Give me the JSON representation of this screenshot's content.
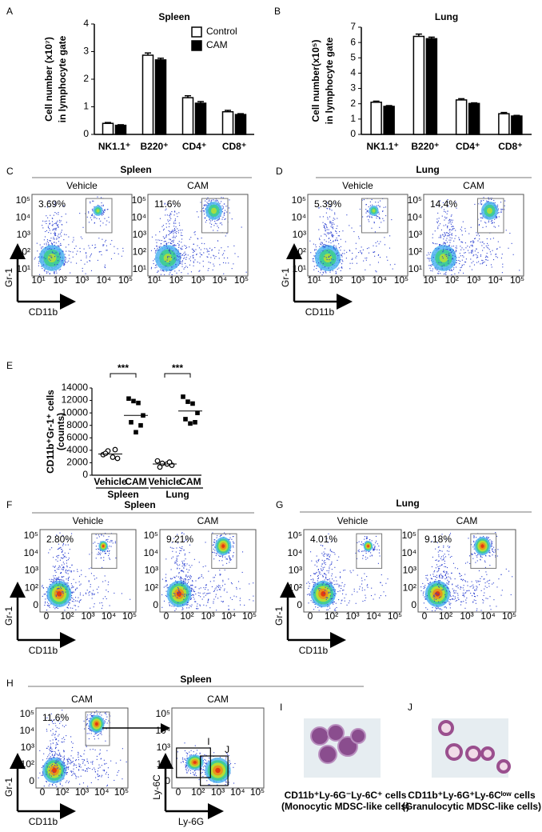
{
  "chart_data": [
    {
      "type": "bar",
      "panel": "A",
      "title": "Spleen",
      "ylabel": [
        "Cell number (x10⁷)",
        "in lymphocyte gate"
      ],
      "categories": [
        "NK1.1⁺",
        "B220⁺",
        "CD4⁺",
        "CD8⁺"
      ],
      "series": [
        {
          "name": "Control",
          "color": "#ffffff",
          "values": [
            0.4,
            2.87,
            1.33,
            0.82
          ],
          "errors": [
            0.03,
            0.08,
            0.07,
            0.05
          ]
        },
        {
          "name": "CAM",
          "color": "#000000",
          "values": [
            0.33,
            2.7,
            1.13,
            0.72
          ],
          "errors": [
            0.02,
            0.06,
            0.06,
            0.03
          ]
        }
      ],
      "ylim": [
        0,
        4
      ],
      "yticks": [
        0,
        1,
        2,
        3,
        4
      ],
      "legend": "upper right"
    },
    {
      "type": "bar",
      "panel": "B",
      "title": "Lung",
      "ylabel": [
        "Cell number(x10⁵)",
        "in lymphocyte gate"
      ],
      "categories": [
        "NK1.1⁺",
        "B220⁺",
        "CD4⁺",
        "CD8⁺"
      ],
      "series": [
        {
          "name": "Control",
          "color": "#ffffff",
          "values": [
            2.1,
            6.4,
            2.25,
            1.35
          ],
          "errors": [
            0.07,
            0.15,
            0.08,
            0.08
          ]
        },
        {
          "name": "CAM",
          "color": "#000000",
          "values": [
            1.83,
            6.25,
            2.02,
            1.2
          ],
          "errors": [
            0.05,
            0.1,
            0.04,
            0.04
          ]
        }
      ],
      "ylim": [
        0,
        7
      ],
      "yticks": [
        0,
        1,
        2,
        3,
        4,
        5,
        6,
        7
      ]
    },
    {
      "type": "dotplot",
      "panel": "E",
      "ylabel": [
        "CD11b⁺Gr-1⁺ cells",
        "(counts)"
      ],
      "categories": [
        "Vehicle",
        "CAM",
        "Vehicle",
        "CAM"
      ],
      "groups": [
        "Spleen",
        "Lung"
      ],
      "values": [
        [
          3300,
          3900,
          2900,
          2700,
          3500,
          4100
        ],
        [
          12300,
          11900,
          11600,
          9600,
          8500,
          8000,
          6900
        ],
        [
          2300,
          1900,
          1800,
          1600,
          1300,
          2100
        ],
        [
          12600,
          11800,
          11500,
          10000,
          9000,
          8500,
          8300
        ]
      ],
      "means": [
        3400,
        9600,
        1800,
        10300
      ],
      "markers": [
        "open-circle",
        "filled-square",
        "open-circle",
        "filled-square"
      ],
      "significance": [
        "***",
        "***"
      ],
      "ylim": [
        0,
        14000
      ],
      "yticks": [
        0,
        2000,
        4000,
        6000,
        8000,
        10000,
        12000,
        14000
      ]
    }
  ],
  "tick_labels": {
    "log": [
      "10¹",
      "10²",
      "10³",
      "10⁴",
      "10⁵"
    ],
    "biexponential": [
      "0",
      "10²",
      "10³",
      "10⁴",
      "10⁵"
    ]
  },
  "flow_panels": [
    {
      "label": "C",
      "title": "Spleen",
      "scale": "log",
      "y_axis": "Gr-1",
      "x_axis": "CD11b",
      "plots": [
        {
          "title": "Vehicle",
          "percent": "3.69%"
        },
        {
          "title": "CAM",
          "percent": "11.6%"
        }
      ]
    },
    {
      "label": "D",
      "title": "Lung",
      "scale": "log",
      "y_axis": "Gr-1",
      "x_axis": "CD11b",
      "plots": [
        {
          "title": "Vehicle",
          "percent": "5.39%"
        },
        {
          "title": "CAM",
          "percent": "14.4%"
        }
      ]
    },
    {
      "label": "F",
      "title": "Spleen",
      "scale": "biexponential",
      "y_axis": "Gr-1",
      "x_axis": "CD11b",
      "plots": [
        {
          "title": "Vehicle",
          "percent": "2.80%"
        },
        {
          "title": "CAM",
          "percent": "9.21%"
        }
      ]
    },
    {
      "label": "G",
      "title": "Lung",
      "scale": "biexponential",
      "y_axis": "Gr-1",
      "x_axis": "CD11b",
      "plots": [
        {
          "title": "Vehicle",
          "percent": "4.01%"
        },
        {
          "title": "CAM",
          "percent": "9.18%"
        }
      ]
    },
    {
      "label": "H",
      "title": "Spleen",
      "scale": "biexponential",
      "plots": [
        {
          "title": "CAM",
          "percent": "11.6%",
          "y_axis": "Gr-1",
          "x_axis": "CD11b"
        },
        {
          "title": "CAM",
          "y_axis": "Ly-6C",
          "x_axis": "Ly-6G",
          "gates": [
            "I",
            "J"
          ]
        }
      ]
    }
  ],
  "cell_images": [
    {
      "label": "I",
      "caption": [
        "CD11b⁺Ly-6G⁻Ly-6C⁺ cells",
        "(Monocytic MDSC-like cells)"
      ]
    },
    {
      "label": "J",
      "caption": [
        "CD11b⁺Ly-6G⁺Ly-6Cˡᵒʷ cells",
        "(Granulocytic MDSC-like cells)"
      ]
    }
  ]
}
